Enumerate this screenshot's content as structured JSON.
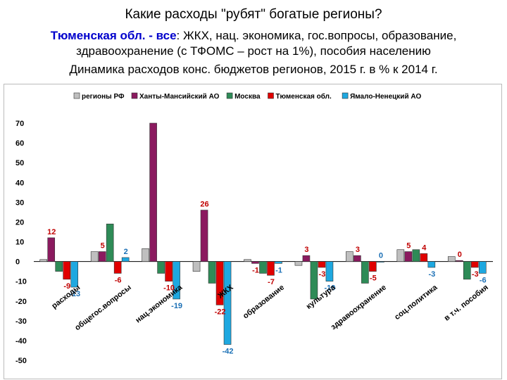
{
  "header": {
    "title": "Какие расходы \"рубят\" богатые регионы?",
    "subtitle_lead": "Тюменская обл. - ",
    "subtitle_all": "все",
    "subtitle_line1_rest": ": ЖКХ, нац. экономика, гос.вопросы, образование,",
    "subtitle_line2": "здравоохранение (с ТФОМС – рост на 1%), пособия населению",
    "chart_title": "Динамика расходов конс. бюджетов регионов, 2015 г. в % к 2014 г."
  },
  "chart_data": {
    "type": "bar",
    "title": "Динамика расходов конс. бюджетов регионов, 2015 г. в % к 2014 г.",
    "legend_position": "top",
    "grid": false,
    "ylim": [
      -50,
      70
    ],
    "yticks": [
      "70",
      "60",
      "50",
      "40",
      "30",
      "20",
      "10",
      "0",
      "-10",
      "-20",
      "-30",
      "-40",
      "-50"
    ],
    "categories": [
      "расходы",
      "общегос.вопросы",
      "нац.экономика",
      "ЖКХ",
      "образование",
      "культура",
      "здравоохранение",
      "соц.политика",
      "в т.ч. пособия"
    ],
    "series": [
      {
        "name": "регионы РФ",
        "color": "#bfbfbf",
        "values": [
          1,
          5,
          6.5,
          -5,
          1,
          -2,
          5,
          6,
          2.5
        ]
      },
      {
        "name": "Ханты-Мансийский АО",
        "color": "#8b1a5f",
        "values": [
          12,
          5,
          70,
          26,
          -1,
          3,
          3,
          5,
          0.5
        ]
      },
      {
        "name": "Москва",
        "color": "#2e8b57",
        "values": [
          -5,
          19,
          -6,
          -11,
          -6,
          -19,
          -11,
          6,
          -9
        ]
      },
      {
        "name": "Тюменская обл.",
        "color": "#e00000",
        "values": [
          -9,
          -6,
          -10,
          -22,
          -7,
          -3,
          -5,
          4,
          -3
        ]
      },
      {
        "name": "Ямало-Ненецкий АО",
        "color": "#1ea8e0",
        "values": [
          -13,
          2,
          -19,
          -42,
          -1,
          -10,
          0,
          -3,
          -6
        ]
      }
    ],
    "data_labels": [
      {
        "category": 0,
        "series": 1,
        "text": "12"
      },
      {
        "category": 0,
        "series": 3,
        "text": "-9"
      },
      {
        "category": 0,
        "series": 4,
        "text": "-13"
      },
      {
        "category": 1,
        "series": 1,
        "text": "5"
      },
      {
        "category": 1,
        "series": 3,
        "text": "-6"
      },
      {
        "category": 1,
        "series": 4,
        "text": "2"
      },
      {
        "category": 2,
        "series": 3,
        "text": "-10"
      },
      {
        "category": 2,
        "series": 4,
        "text": "-19"
      },
      {
        "category": 3,
        "series": 1,
        "text": "26"
      },
      {
        "category": 3,
        "series": 3,
        "text": "-22"
      },
      {
        "category": 3,
        "series": 4,
        "text": "-42"
      },
      {
        "category": 4,
        "series": 1,
        "text": "-1"
      },
      {
        "category": 4,
        "series": 3,
        "text": "-7"
      },
      {
        "category": 4,
        "series": 4,
        "text": "-1"
      },
      {
        "category": 5,
        "series": 1,
        "text": "3"
      },
      {
        "category": 5,
        "series": 3,
        "text": "-3"
      },
      {
        "category": 5,
        "series": 4,
        "text": "-10"
      },
      {
        "category": 6,
        "series": 1,
        "text": "3"
      },
      {
        "category": 6,
        "series": 3,
        "text": "-5"
      },
      {
        "category": 6,
        "series": 4,
        "text": "0"
      },
      {
        "category": 7,
        "series": 1,
        "text": "5"
      },
      {
        "category": 7,
        "series": 3,
        "text": "4"
      },
      {
        "category": 7,
        "series": 4,
        "text": "-3"
      },
      {
        "category": 8,
        "series": 1,
        "text": "0"
      },
      {
        "category": 8,
        "series": 3,
        "text": "-3"
      },
      {
        "category": 8,
        "series": 4,
        "text": "-6"
      }
    ]
  }
}
